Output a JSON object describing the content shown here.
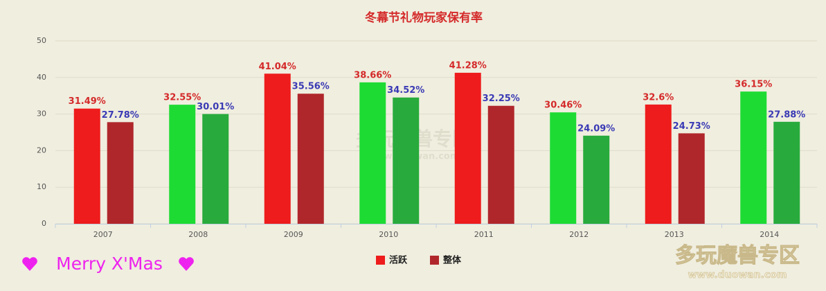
{
  "chart_data": {
    "type": "bar",
    "title": "冬幕节礼物玩家保有率",
    "categories": [
      "2007",
      "2008",
      "2009",
      "2010",
      "2011",
      "2012",
      "2013",
      "2014"
    ],
    "series": [
      {
        "name": "活跃",
        "color": "#ee1c1c",
        "label_color": "#d42a2a",
        "point_colors": [
          "#ee1c1c",
          "#1edb34",
          "#ee1c1c",
          "#1edb34",
          "#ee1c1c",
          "#1edb34",
          "#ee1c1c",
          "#1edb34"
        ],
        "values": [
          31.49,
          32.55,
          41.04,
          38.66,
          41.28,
          30.46,
          32.6,
          36.15
        ],
        "value_labels": [
          "31.49%",
          "32.55%",
          "41.04%",
          "38.66%",
          "41.28%",
          "30.46%",
          "32.6%",
          "36.15%"
        ]
      },
      {
        "name": "整体",
        "color": "#b0272b",
        "label_color": "#3a3ab5",
        "point_colors": [
          "#b0272b",
          "#28ab3c",
          "#b0272b",
          "#28ab3c",
          "#b0272b",
          "#28ab3c",
          "#b0272b",
          "#28ab3c"
        ],
        "values": [
          27.78,
          30.01,
          35.56,
          34.52,
          32.25,
          24.09,
          24.73,
          27.88
        ],
        "value_labels": [
          "27.78%",
          "30.01%",
          "35.56%",
          "34.52%",
          "32.25%",
          "24.09%",
          "24.73%",
          "27.88%"
        ]
      }
    ],
    "ylim": [
      0,
      50
    ],
    "yticks": [
      0,
      10,
      20,
      30,
      40,
      50
    ],
    "grid": true,
    "legend": "bottom",
    "annotation": "Merry X'Mas",
    "watermark": "多玩魔兽专区",
    "watermark_url": "www.duowan.com"
  }
}
